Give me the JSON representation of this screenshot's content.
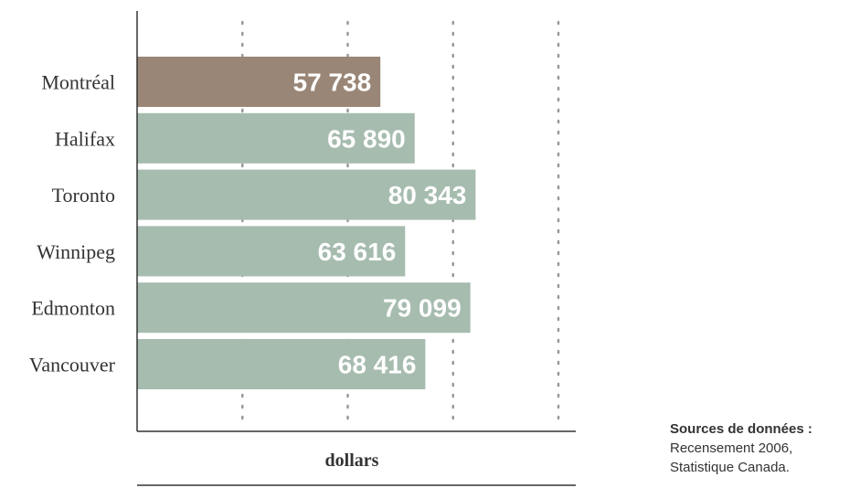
{
  "chart_data": {
    "type": "bar",
    "orientation": "horizontal",
    "categories": [
      "Montréal",
      "Halifax",
      "Toronto",
      "Winnipeg",
      "Edmonton",
      "Vancouver"
    ],
    "values": [
      57738,
      65890,
      80343,
      63616,
      79099,
      68416
    ],
    "value_labels": [
      "57 738",
      "65 890",
      "80 343",
      "63 616",
      "79 099",
      "68 416"
    ],
    "highlight_category": "Montréal",
    "xlabel": "dollars",
    "ylabel": "",
    "xlim": [
      0,
      104000
    ],
    "gridlines": [
      25000,
      50000,
      75000,
      100000
    ],
    "grid": "dotted vertical",
    "colors": {
      "highlight": "#9a8676",
      "bar": "#a6bcaf",
      "axis": "#333333",
      "grid": "#999999"
    }
  },
  "source": {
    "title": "Sources de données :",
    "line1": "Recensement 2006,",
    "line2": "Statistique Canada."
  }
}
